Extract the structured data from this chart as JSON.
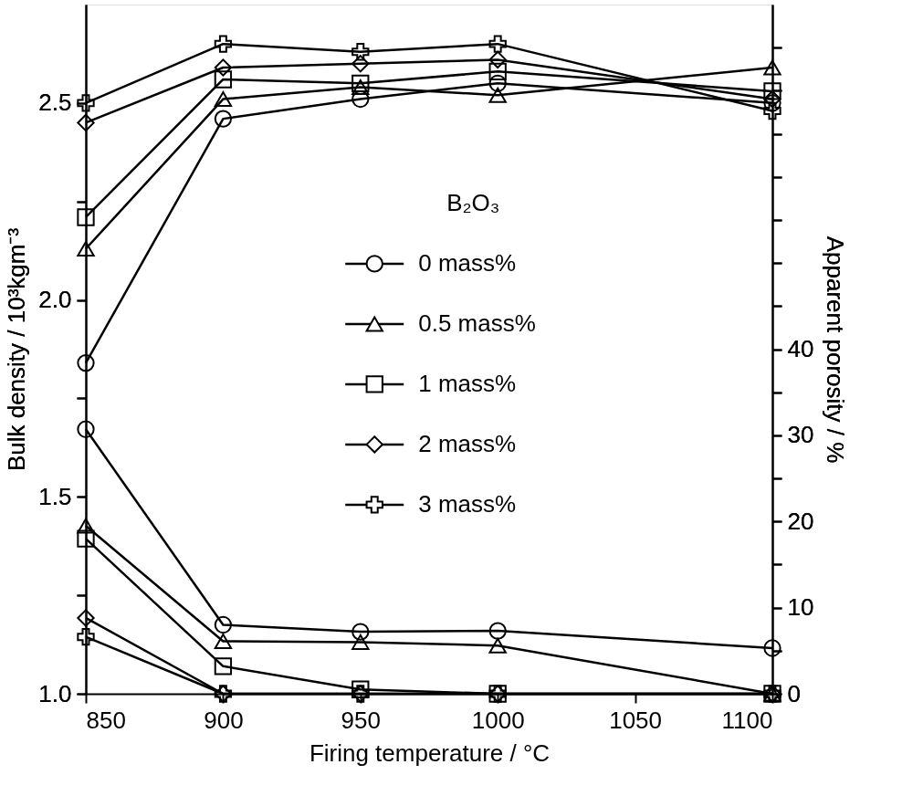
{
  "chart_data": {
    "type": "line",
    "xlabel": "Firing temperature / °C",
    "ylabel": "Bulk density / 10³kgm⁻³",
    "y2label": "Apparent porosity / %",
    "legend_title": "B₂O₃",
    "legend": "right",
    "line_style": "solid",
    "x": [
      850,
      900,
      950,
      1000,
      1100
    ],
    "xlim": [
      850,
      1100
    ],
    "xticks": [
      850,
      900,
      950,
      1000,
      1050,
      1100
    ],
    "ylim": [
      1.0,
      2.75
    ],
    "yticks": [
      {
        "value": 1.0,
        "label": "1.0"
      },
      {
        "value": 1.25,
        "label": null
      },
      {
        "value": 1.5,
        "label": "1.5"
      },
      {
        "value": 1.75,
        "label": null
      },
      {
        "value": 2.0,
        "label": "2.0"
      },
      {
        "value": 2.25,
        "label": null
      },
      {
        "value": 2.5,
        "label": "2.5"
      }
    ],
    "y2lim": [
      0,
      80
    ],
    "y2ticks": [
      0,
      {
        "value": 5,
        "label": null
      },
      10,
      {
        "value": 15,
        "label": null
      },
      20,
      {
        "value": 25,
        "label": null
      },
      30,
      {
        "value": 35,
        "label": null
      },
      40,
      {
        "value": 45,
        "label": null
      },
      {
        "value": 50,
        "label": null
      },
      {
        "value": 55,
        "label": null
      },
      {
        "value": 60,
        "label": null
      },
      {
        "value": 65,
        "label": null
      },
      {
        "value": 70,
        "label": null
      },
      {
        "value": 75,
        "label": null
      }
    ],
    "series": [
      {
        "name": "0 mass%",
        "color": "#000000",
        "marker": "circle",
        "values": [
          1.84,
          2.46,
          2.51,
          2.55,
          2.5
        ]
      },
      {
        "name": "0.5 mass%",
        "color": "#000000",
        "marker": "triangle",
        "values": [
          2.13,
          2.51,
          2.54,
          2.52,
          2.59
        ]
      },
      {
        "name": "1 mass%",
        "color": "#000000",
        "marker": "square",
        "values": [
          2.21,
          2.56,
          2.55,
          2.58,
          2.53
        ]
      },
      {
        "name": "2 mass%",
        "color": "#000000",
        "marker": "diamond",
        "values": [
          2.45,
          2.59,
          2.6,
          2.61,
          2.51
        ]
      },
      {
        "name": "3 mass%",
        "color": "#000000",
        "marker": "cross",
        "values": [
          2.5,
          2.65,
          2.63,
          2.65,
          2.48
        ]
      },
      {
        "color": "#000000",
        "marker": "circle",
        "axis": "y2",
        "values": [
          30.7,
          8.0,
          7.2,
          7.3,
          5.3
        ]
      },
      {
        "color": "#000000",
        "marker": "triangle",
        "axis": "y2",
        "values": [
          19.5,
          6.1,
          6.0,
          5.6,
          0
        ]
      },
      {
        "color": "#000000",
        "marker": "square",
        "axis": "y2",
        "values": [
          18.0,
          3.2,
          0.5,
          0,
          0
        ]
      },
      {
        "color": "#000000",
        "marker": "diamond",
        "axis": "y2",
        "values": [
          8.8,
          0,
          0,
          0,
          0
        ]
      },
      {
        "color": "#000000",
        "marker": "cross",
        "axis": "y2",
        "values": [
          6.6,
          0,
          0,
          0,
          0
        ]
      }
    ]
  }
}
